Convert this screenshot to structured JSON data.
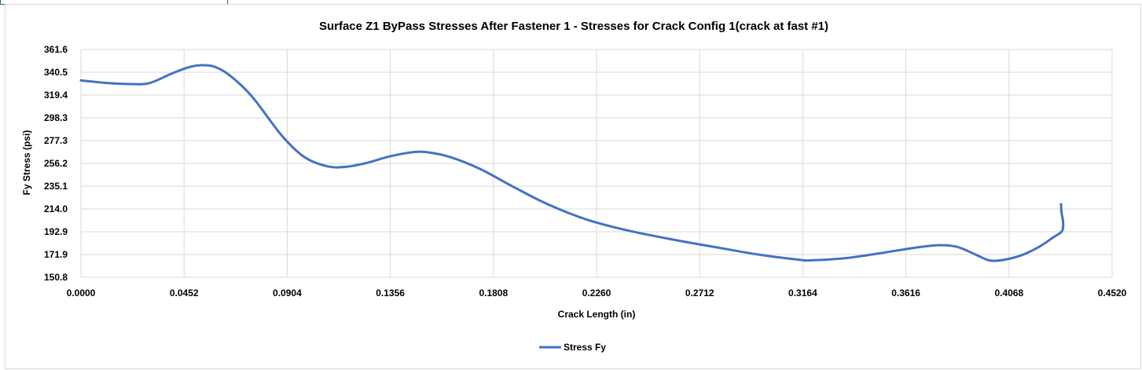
{
  "chart_data": {
    "type": "line",
    "title": "Surface Z1 ByPass Stresses After Fastener 1 - Stresses for Crack Config 1(crack at fast #1)",
    "xlabel": "Crack Length (in)",
    "ylabel": "Fy Stress (psi)",
    "xlim": [
      0.0,
      0.452
    ],
    "ylim": [
      150.8,
      361.6
    ],
    "x_ticks": [
      "0.0000",
      "0.0452",
      "0.0904",
      "0.1356",
      "0.1808",
      "0.2260",
      "0.2712",
      "0.3164",
      "0.3616",
      "0.4068",
      "0.4520"
    ],
    "y_ticks": [
      "361.6",
      "340.5",
      "319.4",
      "298.3",
      "277.3",
      "256.2",
      "235.1",
      "214.0",
      "192.9",
      "171.9",
      "150.8"
    ],
    "grid": true,
    "legend_position": "bottom",
    "series": [
      {
        "name": "Stress Fy",
        "color": "#4472c4",
        "points": [
          [
            0.0,
            333.0
          ],
          [
            0.012,
            330.5
          ],
          [
            0.022,
            329.6
          ],
          [
            0.03,
            330.5
          ],
          [
            0.04,
            339.5
          ],
          [
            0.047,
            345.0
          ],
          [
            0.052,
            347.0
          ],
          [
            0.058,
            346.0
          ],
          [
            0.065,
            338.0
          ],
          [
            0.075,
            318.0
          ],
          [
            0.088,
            282.0
          ],
          [
            0.098,
            262.0
          ],
          [
            0.108,
            253.5
          ],
          [
            0.116,
            253.0
          ],
          [
            0.125,
            256.5
          ],
          [
            0.135,
            262.5
          ],
          [
            0.145,
            266.5
          ],
          [
            0.152,
            266.5
          ],
          [
            0.162,
            262.0
          ],
          [
            0.175,
            251.0
          ],
          [
            0.19,
            234.0
          ],
          [
            0.205,
            218.0
          ],
          [
            0.222,
            204.0
          ],
          [
            0.24,
            194.0
          ],
          [
            0.26,
            185.5
          ],
          [
            0.28,
            178.0
          ],
          [
            0.298,
            171.5
          ],
          [
            0.315,
            167.0
          ],
          [
            0.32,
            166.5
          ],
          [
            0.335,
            168.5
          ],
          [
            0.35,
            173.0
          ],
          [
            0.365,
            178.0
          ],
          [
            0.376,
            180.5
          ],
          [
            0.384,
            179.0
          ],
          [
            0.392,
            172.0
          ],
          [
            0.398,
            166.5
          ],
          [
            0.404,
            166.8
          ],
          [
            0.412,
            171.0
          ],
          [
            0.42,
            179.0
          ],
          [
            0.426,
            187.5
          ],
          [
            0.43,
            193.5
          ],
          [
            0.4305,
            202.0
          ],
          [
            0.4298,
            211.0
          ],
          [
            0.4296,
            218.5
          ]
        ]
      }
    ]
  }
}
